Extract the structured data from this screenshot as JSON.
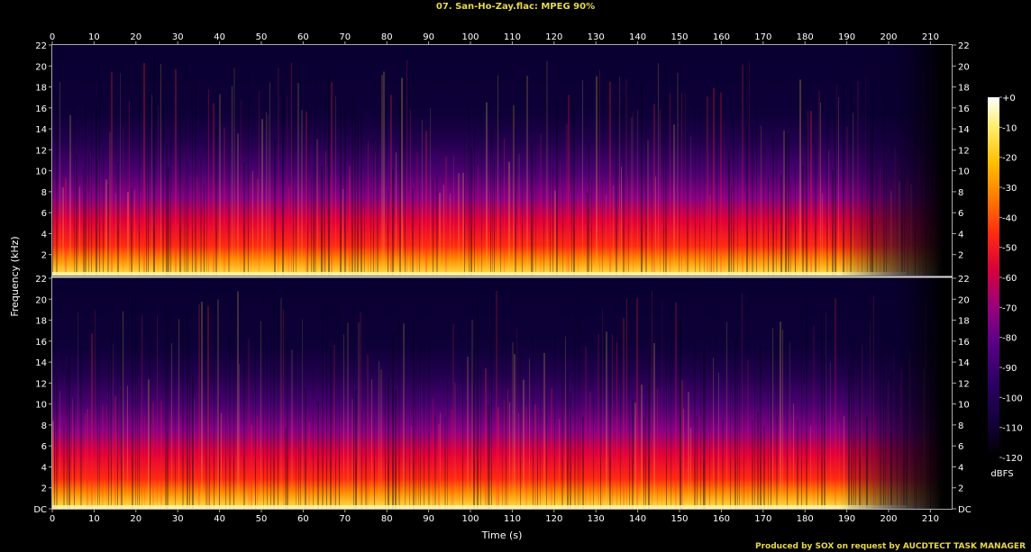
{
  "chart_data": {
    "type": "heatmap",
    "title": "07. San-Ho-Zay.flac: MPEG 90%",
    "xlabel": "Time (s)",
    "ylabel": "Frequency (kHz)",
    "x_ticks": [
      "0",
      "10",
      "20",
      "30",
      "40",
      "50",
      "60",
      "70",
      "80",
      "90",
      "100",
      "110",
      "120",
      "130",
      "140",
      "150",
      "160",
      "170",
      "180",
      "190",
      "200",
      "210"
    ],
    "y_ticks_top": [
      "22",
      "20",
      "18",
      "16",
      "14",
      "12",
      "10",
      "8",
      "6",
      "4",
      "2"
    ],
    "y_ticks_bottom": [
      "22",
      "20",
      "18",
      "16",
      "14",
      "12",
      "10",
      "8",
      "6",
      "4",
      "2",
      "DC"
    ],
    "xlim": [
      0,
      215
    ],
    "ylim_khz": [
      0,
      22
    ],
    "channels": [
      "left",
      "right"
    ],
    "colorbar": {
      "label": "dBFS",
      "ticks": [
        "+0",
        "-10",
        "-20",
        "-30",
        "-40",
        "-50",
        "-60",
        "-70",
        "-80",
        "-90",
        "-100",
        "-110",
        "-120"
      ],
      "range": [
        -120,
        0
      ],
      "colors": [
        "#000000",
        "#14003a",
        "#2a0060",
        "#5a0088",
        "#9a007a",
        "#d6003c",
        "#ff2a10",
        "#ff7a00",
        "#ffc000",
        "#ffee70",
        "#ffffff"
      ]
    },
    "credit": "Produced by SOX on request by AUCDTECT TASK MANAGER",
    "track_end_s": 213
  }
}
